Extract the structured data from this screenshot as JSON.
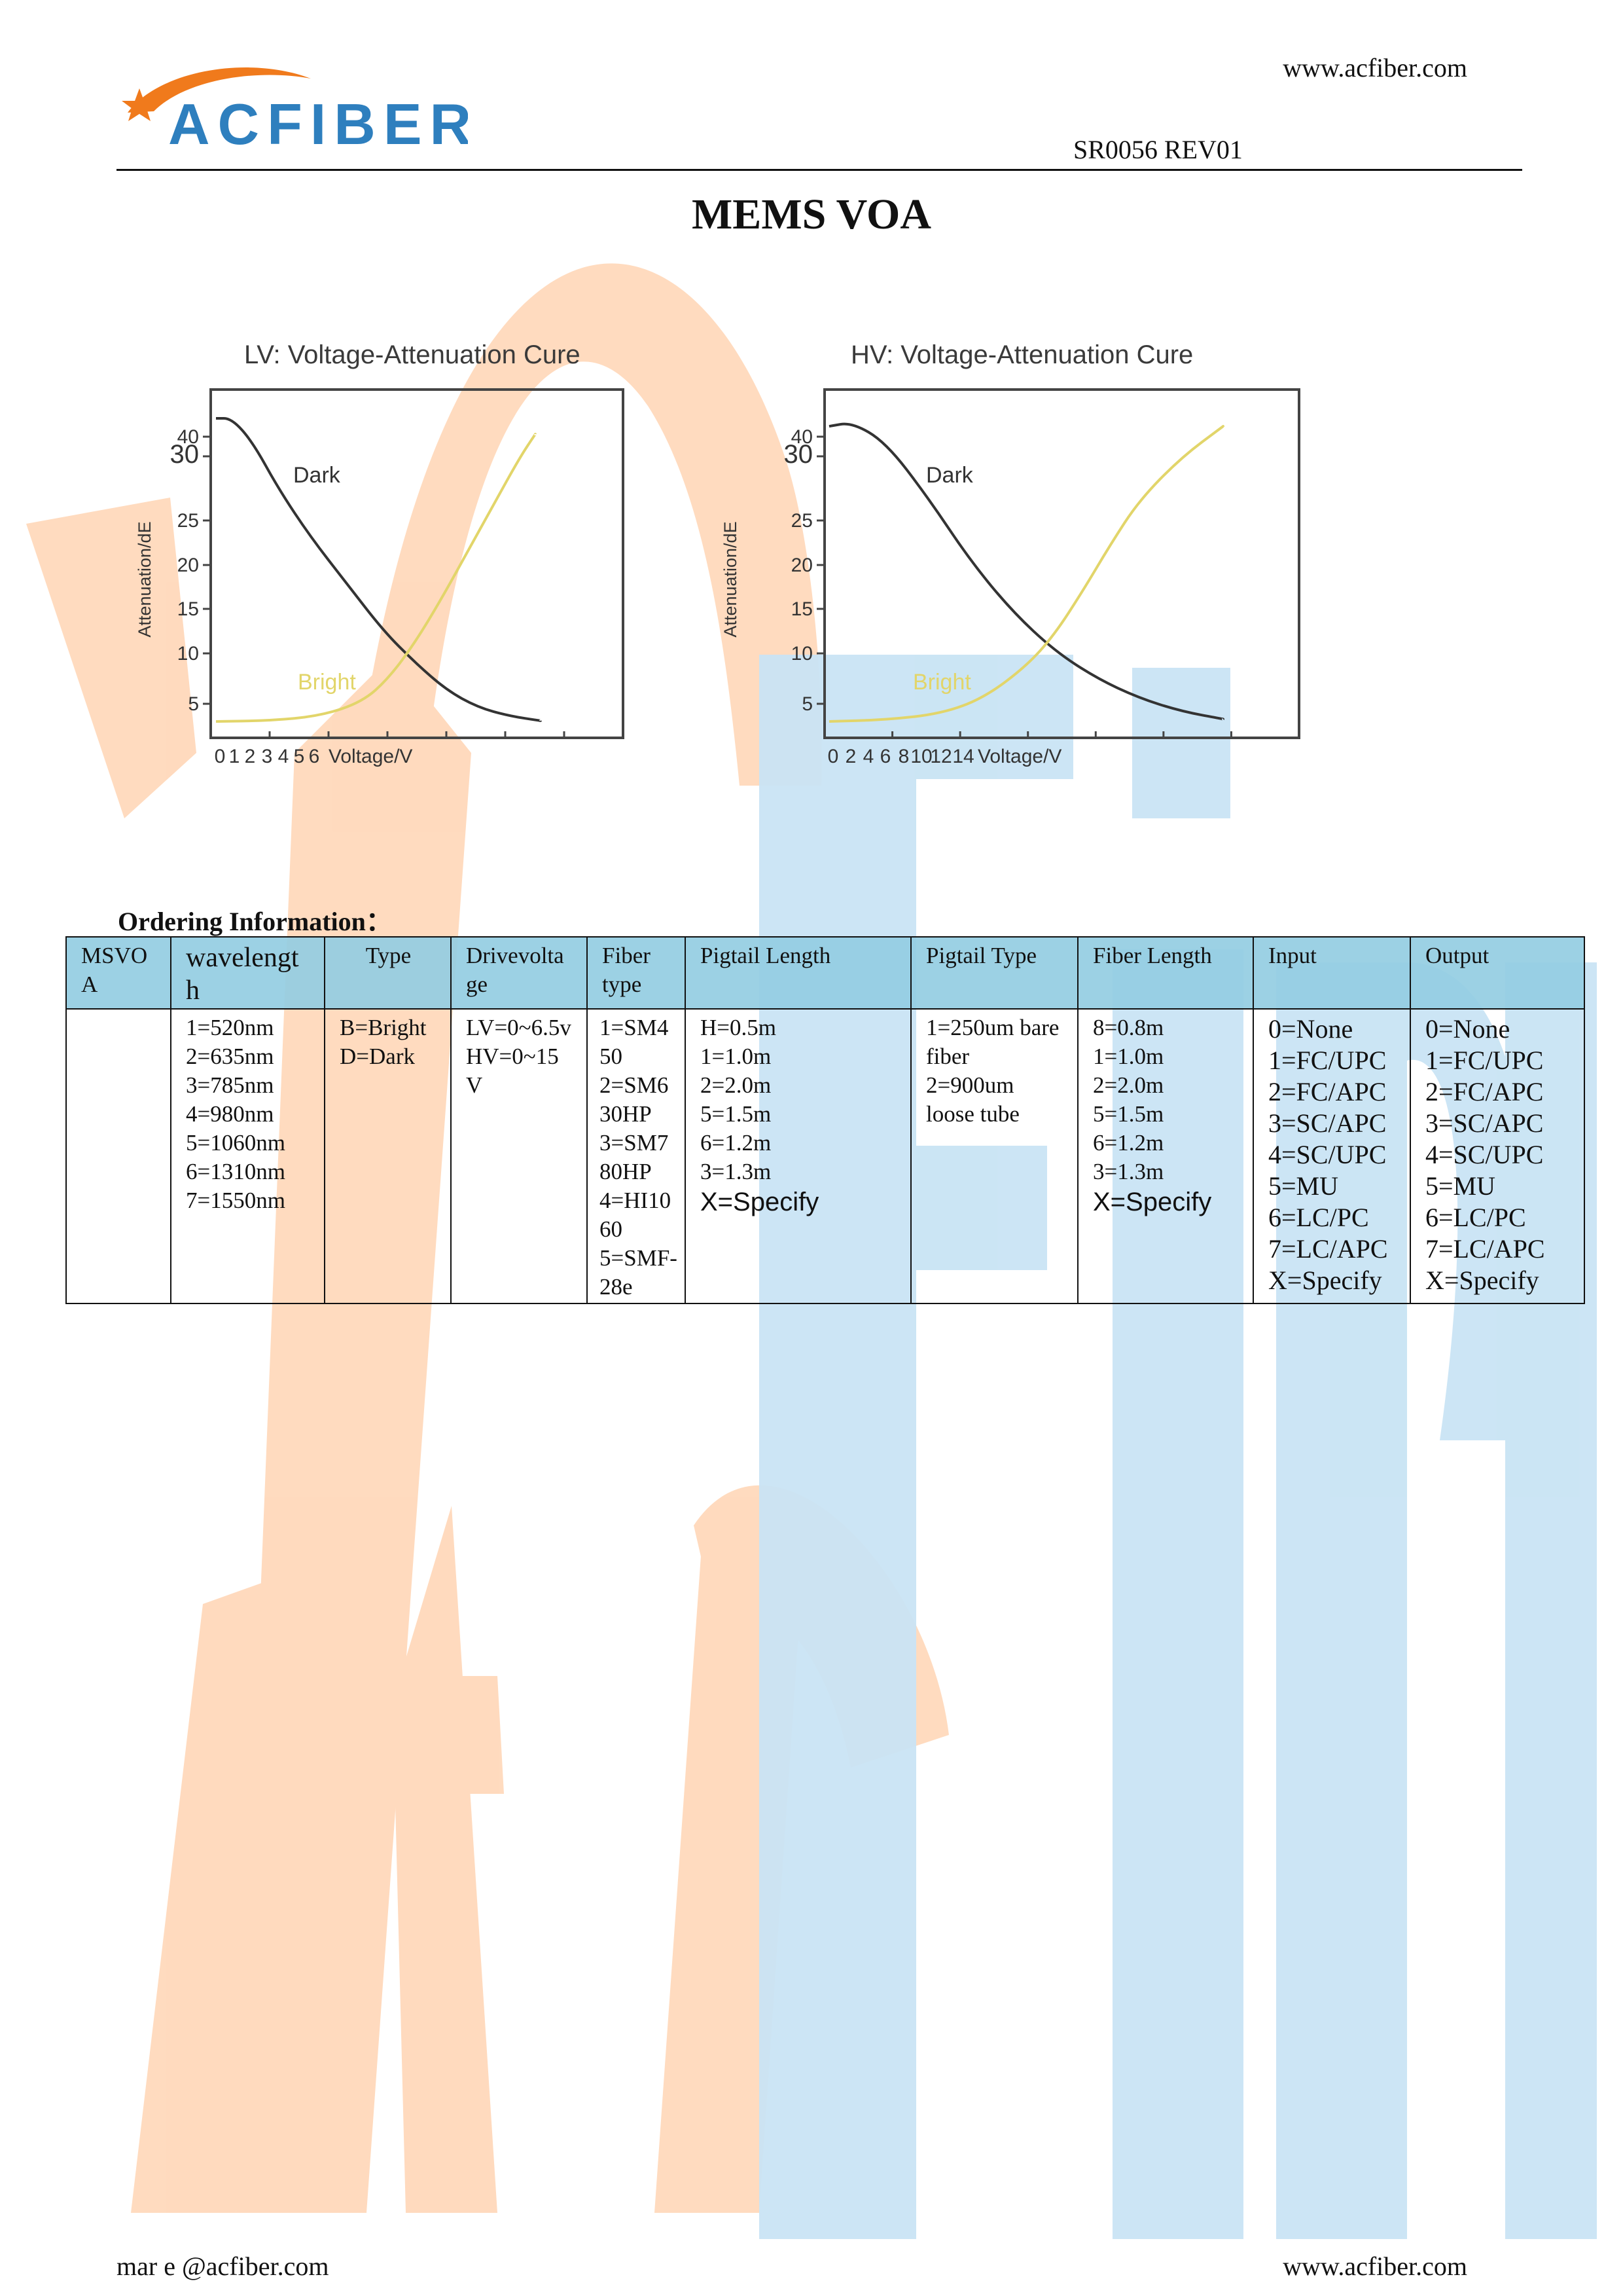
{
  "header": {
    "logo_text": "ACFIBER",
    "website": "www.acfiber.com",
    "doc_ref": "SR0056 REV01"
  },
  "title": "MEMS VOA",
  "watermark_text": "AcFiber",
  "colors": {
    "logo_blue": "#2e7fbe",
    "logo_orange": "#f07a1c",
    "watermark_orange": "#ffd7b8",
    "watermark_blue": "#c9e4f4",
    "header_cell": "#94cde2",
    "bright_curve": "#e2d56a",
    "dark_curve": "#333333"
  },
  "chart_data": [
    {
      "type": "line",
      "title": "LV: Voltage-Attenuation Cure",
      "xlabel": "Voltage/V",
      "ylabel": "Attenuation/dE",
      "x_tick_labels": [
        "0",
        "1",
        "2",
        "3",
        "4",
        "5",
        "6"
      ],
      "y_tick_labels": [
        "40",
        "30",
        "25",
        "20",
        "15",
        "10",
        "5"
      ],
      "xlim": [
        0,
        7
      ],
      "ylim": [
        0,
        42
      ],
      "series": [
        {
          "name": "Dark",
          "x": [
            0,
            0.3,
            0.7,
            1.2,
            1.8,
            2.5,
            3.2,
            3.8,
            4.4,
            5.0,
            5.6,
            6.2
          ],
          "y": [
            40,
            40,
            37,
            31,
            25,
            19,
            13,
            9,
            5.5,
            3.3,
            2.2,
            1.6
          ]
        },
        {
          "name": "Bright",
          "x": [
            0,
            1.0,
            2.0,
            2.8,
            3.3,
            3.8,
            4.3,
            4.8,
            5.3,
            5.8,
            6.1
          ],
          "y": [
            1.5,
            1.6,
            2.2,
            4,
            7,
            11.5,
            17,
            23,
            29,
            35,
            38
          ]
        }
      ]
    },
    {
      "type": "line",
      "title": "HV: Voltage-Attenuation Cure",
      "xlabel": "Voltage/V",
      "ylabel": "Attenuation/dE",
      "x_tick_labels": [
        "0",
        "2",
        "4",
        "6",
        "8",
        "10",
        "12",
        "14"
      ],
      "y_tick_labels": [
        "40",
        "30",
        "25",
        "20",
        "15",
        "10",
        "5"
      ],
      "xlim": [
        0,
        16
      ],
      "ylim": [
        0,
        42
      ],
      "series": [
        {
          "name": "Dark",
          "x": [
            0,
            0.8,
            2.0,
            3.5,
            5.0,
            6.5,
            8.0,
            9.5,
            11.0,
            12.5,
            14.0
          ],
          "y": [
            39,
            39.5,
            37,
            30,
            22,
            15.5,
            10.5,
            7,
            4.5,
            2.8,
            1.8
          ]
        },
        {
          "name": "Bright",
          "x": [
            0,
            2.0,
            4.0,
            5.5,
            7.0,
            8.0,
            9.0,
            10.0,
            11.0,
            12.5,
            14.0
          ],
          "y": [
            1.5,
            1.7,
            2.5,
            4.5,
            8.5,
            12.5,
            18,
            24,
            29.5,
            35,
            39
          ]
        }
      ]
    }
  ],
  "ordering": {
    "heading": "Ordering Information：",
    "columns": [
      {
        "header": "MSVOA",
        "options": []
      },
      {
        "header": "wavelength",
        "options": [
          "1=520nm",
          "2=635nm",
          "3=785nm",
          "4=980nm",
          "5=1060nm",
          "6=1310nm",
          "7=1550nm"
        ]
      },
      {
        "header": "Type",
        "options": [
          "B=Bright",
          "D=Dark"
        ]
      },
      {
        "header": "Drivevoltage",
        "options": [
          "LV=0~6.5v",
          "HV=0~15V"
        ]
      },
      {
        "header": "Fiber type",
        "options": [
          "1=SM450",
          "2=SM630HP",
          "3=SM780HP",
          "4=HI1060",
          "5=SMF-28e"
        ]
      },
      {
        "header": "Pigtail Length",
        "options": [
          "H=0.5m",
          "1=1.0m",
          "2=2.0m",
          "5=1.5m",
          "6=1.2m",
          "3=1.3m",
          "X=Specify"
        ]
      },
      {
        "header": "Pigtail Type",
        "options": [
          "1=250um bare fiber",
          "2=900um loose tube"
        ]
      },
      {
        "header": "Fiber Length",
        "options": [
          "8=0.8m",
          "1=1.0m",
          "2=2.0m",
          "5=1.5m",
          "6=1.2m",
          "3=1.3m",
          "X=Specify"
        ]
      },
      {
        "header": "Input",
        "options": [
          "0=None",
          "1=FC/UPC",
          "2=FC/APC",
          "3=SC/APC",
          "4=SC/UPC",
          "5=MU",
          "6=LC/PC",
          "7=LC/APC",
          "X=Specify"
        ]
      },
      {
        "header": "Output",
        "options": [
          "0=None",
          "1=FC/UPC",
          "2=FC/APC",
          "3=SC/APC",
          "4=SC/UPC",
          "5=MU",
          "6=LC/PC",
          "7=LC/APC",
          "X=Specify"
        ]
      }
    ]
  },
  "footer": {
    "email": "mar e @acfiber.com",
    "website": "www.acfiber.com"
  }
}
